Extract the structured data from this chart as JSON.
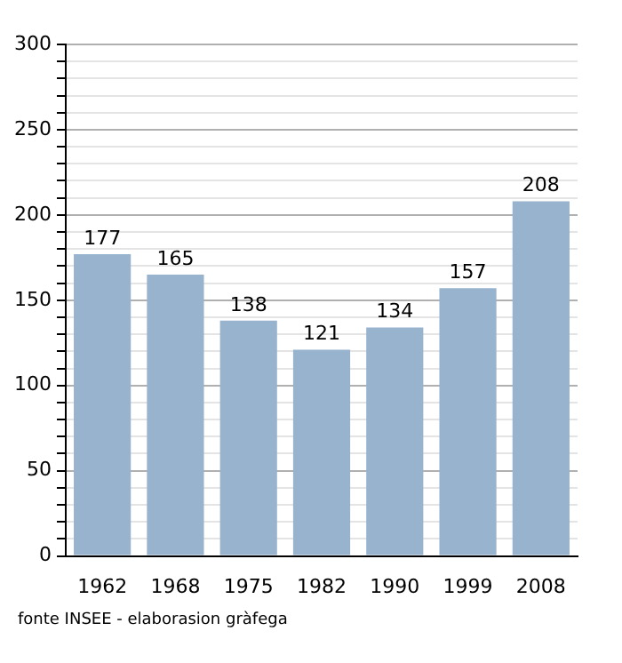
{
  "chart_data": {
    "type": "bar",
    "categories": [
      "1962",
      "1968",
      "1975",
      "1982",
      "1990",
      "1999",
      "2008"
    ],
    "values": [
      177,
      165,
      138,
      121,
      134,
      157,
      208
    ],
    "color": "#98b3cd",
    "ylim": [
      0,
      300
    ],
    "yticks": [
      0,
      {
        "value": 10,
        "label": null
      },
      {
        "value": 20,
        "label": null
      },
      {
        "value": 30,
        "label": null
      },
      {
        "value": 40,
        "label": null
      },
      50,
      {
        "value": 60,
        "label": null
      },
      {
        "value": 70,
        "label": null
      },
      {
        "value": 80,
        "label": null
      },
      {
        "value": 90,
        "label": null
      },
      100,
      {
        "value": 110,
        "label": null
      },
      {
        "value": 120,
        "label": null
      },
      {
        "value": 130,
        "label": null
      },
      {
        "value": 140,
        "label": null
      },
      150,
      {
        "value": 160,
        "label": null
      },
      {
        "value": 170,
        "label": null
      },
      {
        "value": 180,
        "label": null
      },
      {
        "value": 190,
        "label": null
      },
      200,
      {
        "value": 210,
        "label": null
      },
      {
        "value": 220,
        "label": null
      },
      {
        "value": 230,
        "label": null
      },
      {
        "value": 240,
        "label": null
      },
      250,
      {
        "value": 260,
        "label": null
      },
      {
        "value": 270,
        "label": null
      },
      {
        "value": 280,
        "label": null
      },
      {
        "value": 290,
        "label": null
      },
      300
    ],
    "grid": "y",
    "legend": false,
    "data_labels": true,
    "annotations": [
      "fonte INSEE - elaborasion gràfega"
    ]
  }
}
